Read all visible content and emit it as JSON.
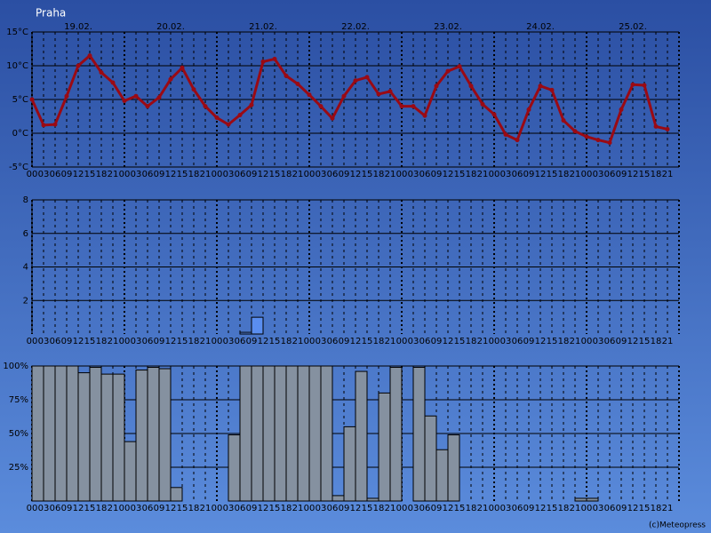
{
  "title": "Praha",
  "footer": "(c)Meteopress",
  "chart_data": [
    {
      "type": "line",
      "color": "#9a0a14",
      "dates": [
        "19.02.",
        "20.02.",
        "21.02.",
        "22.02.",
        "23.02.",
        "24.02.",
        "25.02."
      ],
      "categories": [
        "00",
        "03",
        "06",
        "09",
        "12",
        "15",
        "18",
        "21",
        "00",
        "03",
        "06",
        "09",
        "12",
        "15",
        "18",
        "21",
        "00",
        "03",
        "06",
        "09",
        "12",
        "15",
        "18",
        "21",
        "00",
        "03",
        "06",
        "09",
        "12",
        "15",
        "18",
        "21",
        "00",
        "03",
        "06",
        "09",
        "12",
        "15",
        "18",
        "21",
        "00",
        "03",
        "06",
        "09",
        "12",
        "15",
        "18",
        "21",
        "00",
        "03",
        "06",
        "09",
        "12",
        "15",
        "18",
        "21"
      ],
      "values": [
        5,
        1.2,
        1.3,
        5.5,
        10,
        11.5,
        9,
        7.5,
        4.8,
        5.5,
        4,
        5.3,
        8,
        9.7,
        6.5,
        4,
        2.3,
        1.3,
        2.7,
        4.2,
        10.6,
        11,
        8.5,
        7.3,
        5.7,
        4,
        2.2,
        5.5,
        7.8,
        8.3,
        5.8,
        6.2,
        4,
        4,
        2.6,
        7,
        9.2,
        9.9,
        7,
        4.3,
        2.8,
        -0.2,
        -1,
        3.5,
        7,
        6.4,
        1.9,
        0.3,
        -0.5,
        -1,
        -1.4,
        3.5,
        7.2,
        7.1,
        1,
        0.6
      ],
      "ylim": [
        -5,
        15
      ],
      "yticks": [
        {
          "value": -5,
          "label": "-5°C"
        },
        {
          "value": 0,
          "label": "0°C"
        },
        {
          "value": 5,
          "label": "5°C"
        },
        {
          "value": 10,
          "label": "10°C"
        },
        {
          "value": 15,
          "label": "15°C"
        }
      ],
      "grid": true
    },
    {
      "type": "bar",
      "color": "#5a8ef0",
      "categories": [
        "00",
        "03",
        "06",
        "09",
        "12",
        "15",
        "18",
        "21",
        "00",
        "03",
        "06",
        "09",
        "12",
        "15",
        "18",
        "21",
        "00",
        "03",
        "06",
        "09",
        "12",
        "15",
        "18",
        "21",
        "00",
        "03",
        "06",
        "09",
        "12",
        "15",
        "18",
        "21",
        "00",
        "03",
        "06",
        "09",
        "12",
        "15",
        "18",
        "21",
        "00",
        "03",
        "06",
        "09",
        "12",
        "15",
        "18",
        "21",
        "00",
        "03",
        "06",
        "09",
        "12",
        "15",
        "18",
        "21"
      ],
      "values": [
        0,
        0,
        0,
        0,
        0,
        0,
        0,
        0,
        0,
        0,
        0,
        0,
        0,
        0,
        0,
        0,
        0,
        0,
        0.1,
        1,
        0,
        0,
        0,
        0,
        0,
        0,
        0,
        0,
        0,
        0,
        0,
        0,
        0,
        0,
        0,
        0,
        0,
        0,
        0,
        0,
        0,
        0,
        0,
        0,
        0,
        0,
        0,
        0,
        0,
        0,
        0,
        0,
        0,
        0,
        0,
        0
      ],
      "ylim": [
        0,
        8
      ],
      "yticks": [
        2,
        4,
        6,
        8
      ],
      "grid": true
    },
    {
      "type": "bar",
      "color": "#8591a0",
      "categories": [
        "00",
        "03",
        "06",
        "09",
        "12",
        "15",
        "18",
        "21",
        "00",
        "03",
        "06",
        "09",
        "12",
        "15",
        "18",
        "21",
        "00",
        "03",
        "06",
        "09",
        "12",
        "15",
        "18",
        "21",
        "00",
        "03",
        "06",
        "09",
        "12",
        "15",
        "18",
        "21",
        "00",
        "03",
        "06",
        "09",
        "12",
        "15",
        "18",
        "21",
        "00",
        "03",
        "06",
        "09",
        "12",
        "15",
        "18",
        "21",
        "00",
        "03",
        "06",
        "09",
        "12",
        "15",
        "18",
        "21"
      ],
      "values": [
        100,
        100,
        100,
        100,
        95,
        99,
        94,
        94,
        44,
        97,
        99,
        98,
        10,
        0,
        0,
        0,
        0,
        49,
        100,
        100,
        100,
        100,
        100,
        100,
        100,
        100,
        4,
        55,
        96,
        2,
        80,
        99,
        0,
        99,
        63,
        38,
        49,
        0,
        0,
        0,
        0,
        0,
        0,
        0,
        0,
        0,
        0,
        2,
        2,
        0,
        0,
        0,
        0,
        0,
        0,
        0
      ],
      "ylim": [
        0,
        100
      ],
      "yticks": [
        {
          "value": 25,
          "label": "25%"
        },
        {
          "value": 50,
          "label": "50%"
        },
        {
          "value": 75,
          "label": "75%"
        },
        {
          "value": 100,
          "label": "100%"
        }
      ],
      "grid": true
    }
  ]
}
